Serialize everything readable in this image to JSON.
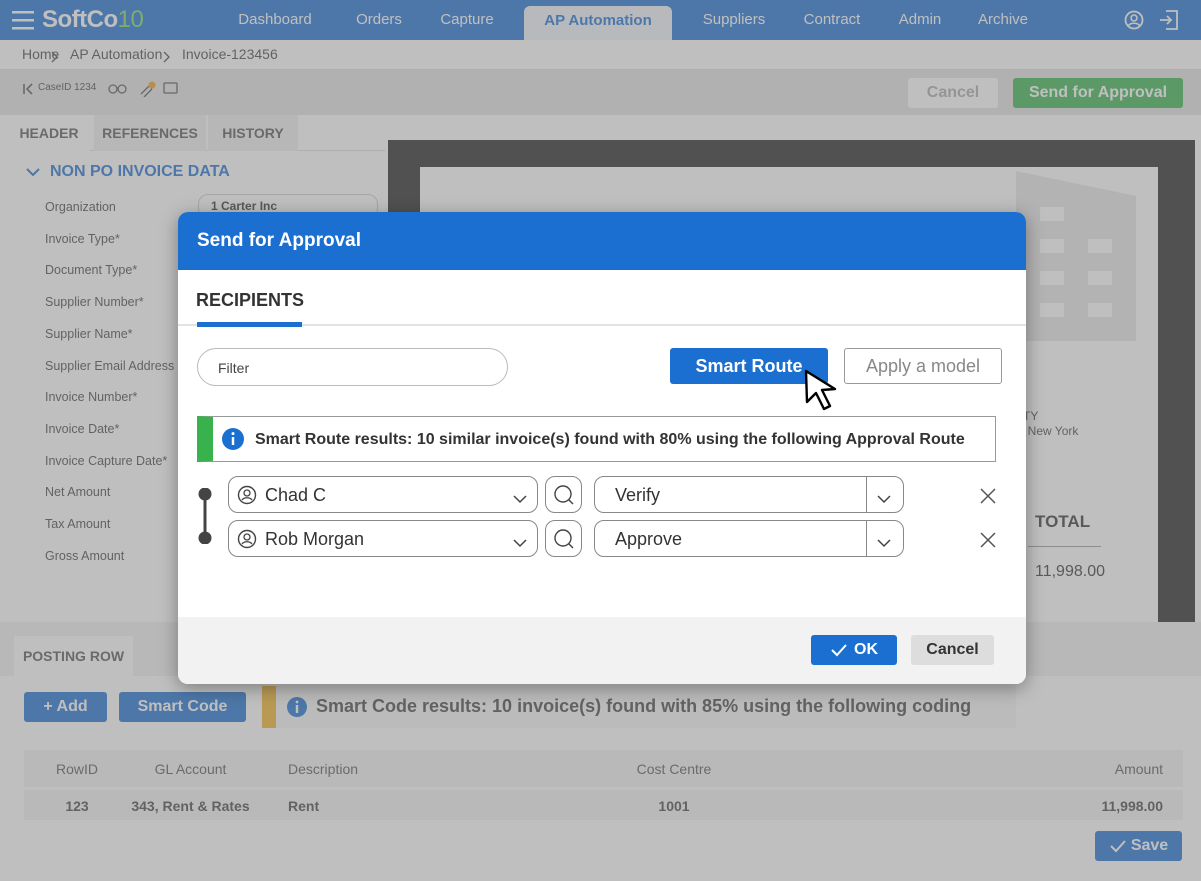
{
  "nav": {
    "brand": "SoftCo",
    "brand_suffix": "10",
    "items": [
      "Dashboard",
      "Orders",
      "Capture",
      "AP Automation",
      "Suppliers",
      "Contract",
      "Admin",
      "Archive"
    ],
    "active": "AP Automation"
  },
  "breadcrumb": [
    "Home",
    "AP Automation",
    "Invoice-123456"
  ],
  "toolbar": {
    "case_id": "CaseID 1234",
    "cancel": "Cancel",
    "send": "Send for Approval"
  },
  "left_panel": {
    "tabs": [
      "HEADER",
      "REFERENCES",
      "HISTORY"
    ],
    "section": "NON PO INVOICE DATA",
    "fields": [
      {
        "label": "Organization",
        "value": "1 Carter Inc"
      },
      {
        "label": "Invoice Type*"
      },
      {
        "label": "Document Type*"
      },
      {
        "label": "Supplier Number*"
      },
      {
        "label": "Supplier Name*"
      },
      {
        "label": "Supplier Email Address"
      },
      {
        "label": "Invoice Number*"
      },
      {
        "label": "Invoice Date*"
      },
      {
        "label": "Invoice Capture Date*"
      },
      {
        "label": "Net Amount"
      },
      {
        "label": "Tax Amount"
      },
      {
        "label": "Gross Amount"
      }
    ]
  },
  "preview": {
    "city_fragment": "TY",
    "address_fragment": ", New York",
    "total_label": "TOTAL",
    "total_value": "11,998.00"
  },
  "posting": {
    "tab": "POSTING ROW",
    "add": "+ Add",
    "smart_code": "Smart Code",
    "info": "Smart Code results: 10 invoice(s) found with 85% using the following coding",
    "table": {
      "headers": [
        "RowID",
        "GL Account",
        "Description",
        "Cost Centre",
        "Amount"
      ],
      "rows": [
        [
          "123",
          "343, Rent & Rates",
          "Rent",
          "1001",
          "11,998.00"
        ]
      ]
    },
    "save": "Save"
  },
  "modal": {
    "title": "Send for Approval",
    "tab": "RECIPIENTS",
    "filter_placeholder": "Filter",
    "smart_route": "Smart Route",
    "apply_model": "Apply a model",
    "info": "Smart Route results: 10 similar invoice(s) found with 80% using the following Approval Route",
    "recipients": [
      {
        "name": "Chad C",
        "action": "Verify"
      },
      {
        "name": "Rob Morgan",
        "action": "Approve"
      }
    ],
    "ok": "OK",
    "cancel": "Cancel"
  }
}
